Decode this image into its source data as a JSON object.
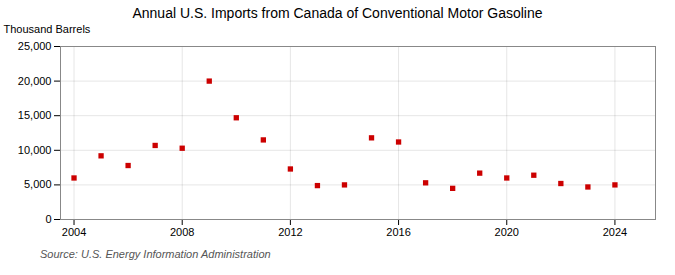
{
  "chart_data": {
    "type": "scatter",
    "title": "Annual U.S. Imports from Canada of Conventional Motor Gasoline",
    "ylabel": "Thousand Barrels",
    "source": "Source: U.S. Energy Information Administration",
    "x": [
      2004,
      2005,
      2006,
      2007,
      2008,
      2009,
      2010,
      2011,
      2012,
      2013,
      2014,
      2015,
      2016,
      2017,
      2018,
      2019,
      2020,
      2021,
      2022,
      2023,
      2024
    ],
    "values": [
      6000,
      9200,
      7800,
      10700,
      10300,
      20000,
      14700,
      11500,
      7300,
      4900,
      5000,
      11800,
      11200,
      5300,
      4500,
      6700,
      6000,
      6400,
      5200,
      4700,
      5000
    ],
    "color": "#cc0000",
    "marker": "square",
    "xlim": [
      2003.5,
      2025.5
    ],
    "xticks": [
      2004,
      2008,
      2012,
      2016,
      2020,
      2024
    ],
    "ylim": [
      0,
      25000
    ],
    "yticks": [
      0,
      {
        "value": 5000,
        "label": "5,000"
      },
      {
        "value": 10000,
        "label": "10,000"
      },
      {
        "value": 15000,
        "label": "15,000"
      },
      {
        "value": 20000,
        "label": "20,000"
      },
      {
        "value": 25000,
        "label": "25,000"
      }
    ],
    "grid": true
  }
}
